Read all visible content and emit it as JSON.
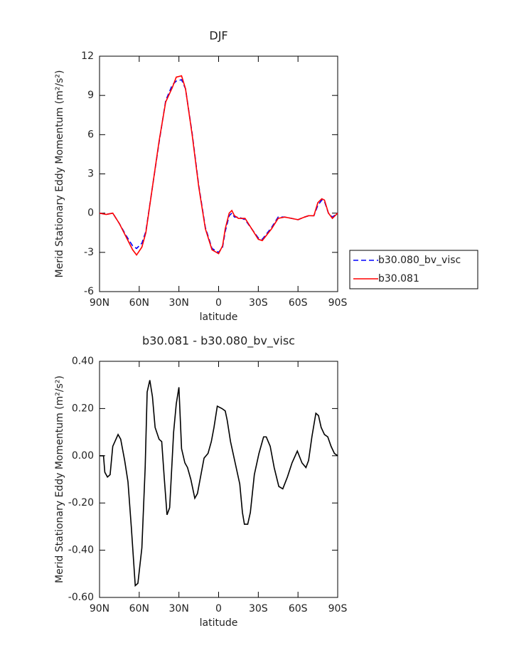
{
  "chart_data": [
    {
      "type": "line",
      "title": "DJF",
      "xlabel": "latitude",
      "ylabel": "Merid Stationary Eddy Momentum (m²/s²)",
      "xlim": [
        90,
        -90
      ],
      "ylim": [
        -6,
        12
      ],
      "xticks": [
        {
          "value": 90,
          "label": "90N"
        },
        {
          "value": 60,
          "label": "60N"
        },
        {
          "value": 30,
          "label": "30N"
        },
        0,
        {
          "value": -30,
          "label": "30S"
        },
        {
          "value": -60,
          "label": "60S"
        },
        {
          "value": -90,
          "label": "90S"
        }
      ],
      "yticks": [
        12,
        9,
        6,
        3,
        0,
        -3,
        -6
      ],
      "legend": "right",
      "x": [
        90,
        85,
        80,
        75,
        70,
        65,
        62,
        58,
        55,
        50,
        45,
        40,
        35,
        32,
        28,
        25,
        20,
        15,
        10,
        5,
        0,
        -3,
        -5,
        -8,
        -10,
        -12,
        -15,
        -20,
        -25,
        -30,
        -33,
        -40,
        -45,
        -50,
        -55,
        -60,
        -65,
        -68,
        -72,
        -75,
        -78,
        -80,
        -83,
        -86,
        -90
      ],
      "series": [
        {
          "name": "b30.080_bv_visc",
          "color": "#0000ff",
          "dash": true,
          "values": [
            0,
            -0.1,
            0,
            -0.8,
            -1.7,
            -2.5,
            -2.7,
            -2.3,
            -1.4,
            2,
            5.4,
            8.6,
            9.8,
            10.1,
            10.2,
            9.5,
            6.1,
            2.1,
            -1.1,
            -2.7,
            -3.0,
            -2.6,
            -1.4,
            -0.2,
            0,
            -0.3,
            -0.3,
            -0.5,
            -1.2,
            -1.9,
            -2.0,
            -1.1,
            -0.3,
            -0.3,
            -0.4,
            -0.5,
            -0.3,
            -0.2,
            -0.2,
            0.6,
            1.0,
            0.9,
            0,
            -0.3,
            0
          ]
        },
        {
          "name": "b30.081",
          "color": "#ff0000",
          "dash": false,
          "values": [
            0,
            -0.1,
            0,
            -0.8,
            -1.8,
            -2.8,
            -3.2,
            -2.6,
            -1.5,
            2,
            5.5,
            8.5,
            9.6,
            10.4,
            10.5,
            9.5,
            6,
            2,
            -1.2,
            -2.8,
            -3.1,
            -2.5,
            -1.2,
            0,
            0.2,
            -0.2,
            -0.4,
            -0.4,
            -1.2,
            -2,
            -2.1,
            -1.2,
            -0.4,
            -0.3,
            -0.4,
            -0.5,
            -0.3,
            -0.2,
            -0.2,
            0.8,
            1.1,
            1,
            0,
            -0.4,
            0
          ]
        }
      ]
    },
    {
      "type": "line",
      "title": "b30.081 - b30.080_bv_visc",
      "xlabel": "latitude",
      "ylabel": "Merid Stationary Eddy Momentum (m²/s²)",
      "xlim": [
        90,
        -90
      ],
      "ylim": [
        -0.6,
        0.4
      ],
      "xticks": [
        {
          "value": 90,
          "label": "90N"
        },
        {
          "value": 60,
          "label": "60N"
        },
        {
          "value": 30,
          "label": "30N"
        },
        0,
        {
          "value": -30,
          "label": "30S"
        },
        {
          "value": -60,
          "label": "60S"
        },
        {
          "value": -90,
          "label": "90S"
        }
      ],
      "yticks": [
        {
          "value": 0.4,
          "label": "0.40"
        },
        {
          "value": 0.2,
          "label": "0.20"
        },
        {
          "value": 0,
          "label": "0.00"
        },
        {
          "value": -0.2,
          "label": "-0.20"
        },
        {
          "value": -0.4,
          "label": "-0.40"
        },
        {
          "value": -0.6,
          "label": "-0.60"
        }
      ],
      "color": "#000000",
      "x": [
        90,
        87,
        86,
        84,
        82,
        80,
        76,
        74,
        71,
        68.5,
        66,
        63,
        61,
        58,
        55.5,
        54,
        52,
        50,
        48,
        45,
        43,
        41,
        39,
        37,
        34,
        32,
        30,
        28,
        25.5,
        23.5,
        21,
        18,
        16,
        13,
        11,
        8,
        5.5,
        3.5,
        1,
        -2.5,
        -5,
        -6.5,
        -9,
        -12.5,
        -16,
        -18,
        -19.5,
        -22,
        -24,
        -27,
        -30.5,
        -34,
        -36,
        -39,
        -42,
        -45.5,
        -48.5,
        -52,
        -55.5,
        -59.5,
        -63,
        -66,
        -68,
        -70.5,
        -73.5,
        -75.5,
        -77.5,
        -80,
        -82.5,
        -85,
        -87.5,
        -90
      ],
      "values": [
        0,
        0,
        -0.07,
        -0.09,
        -0.08,
        0.04,
        0.09,
        0.07,
        -0.02,
        -0.11,
        -0.3,
        -0.55,
        -0.54,
        -0.39,
        -0.05,
        0.27,
        0.32,
        0.25,
        0.12,
        0.07,
        0.06,
        -0.1,
        -0.25,
        -0.22,
        0.1,
        0.22,
        0.29,
        0.03,
        -0.03,
        -0.05,
        -0.1,
        -0.18,
        -0.16,
        -0.07,
        -0.01,
        0.01,
        0.06,
        0.12,
        0.21,
        0.2,
        0.19,
        0.15,
        0.06,
        -0.03,
        -0.12,
        -0.24,
        -0.29,
        -0.29,
        -0.24,
        -0.08,
        0.01,
        0.08,
        0.08,
        0.04,
        -0.05,
        -0.13,
        -0.14,
        -0.09,
        -0.03,
        0.02,
        -0.03,
        -0.05,
        -0.02,
        0.08,
        0.18,
        0.17,
        0.12,
        0.09,
        0.08,
        0.04,
        0.01,
        0
      ]
    }
  ]
}
